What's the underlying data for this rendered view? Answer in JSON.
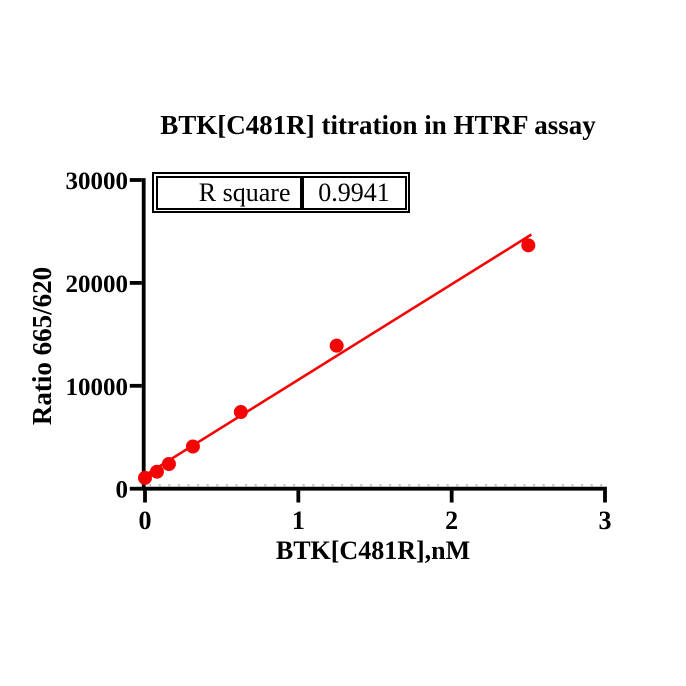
{
  "chart_data": {
    "type": "scatter",
    "title": "BTK[C481R] titration in HTRF assay",
    "xlabel": "BTK[C481R],nM",
    "ylabel": "Ratio 665/620",
    "xlim": [
      0,
      3
    ],
    "ylim": [
      0,
      30000
    ],
    "x_ticks": [
      "0",
      "1",
      "2",
      "3"
    ],
    "x_tick_values": [
      0,
      1,
      2,
      3
    ],
    "y_ticks": [
      "0",
      "10000",
      "20000",
      "30000"
    ],
    "y_tick_values": [
      0,
      10000,
      20000,
      30000
    ],
    "grid": "off",
    "legend": "none",
    "marker": "circle",
    "series_name": "BTK[C481R] titration",
    "points": [
      {
        "x": 0.0,
        "y": 1050
      },
      {
        "x": 0.078,
        "y": 1650
      },
      {
        "x": 0.156,
        "y": 2400
      },
      {
        "x": 0.3125,
        "y": 4100
      },
      {
        "x": 0.625,
        "y": 7450
      },
      {
        "x": 1.25,
        "y": 13900
      },
      {
        "x": 2.5,
        "y": 23650
      }
    ],
    "fit_line": {
      "x1": 0,
      "y1": 1300,
      "x2": 2.52,
      "y2": 24700
    },
    "table": {
      "label": "R square",
      "value": "0.9941"
    },
    "colors": {
      "series": "#f40505",
      "axis": "#000000",
      "text": "#000000",
      "minor_tick": "#c3c3c3",
      "background": "#ffffff"
    }
  }
}
